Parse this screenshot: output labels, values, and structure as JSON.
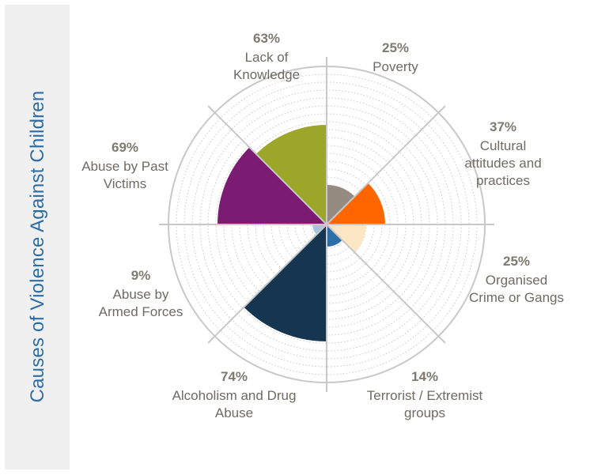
{
  "title": "Causes of Violence Against Children",
  "colors": {
    "title": "#2e6da4",
    "percent_text": "#7f7a71",
    "label_text": "#6f6a63",
    "grid": "#c8c8c8"
  },
  "chart_data": {
    "type": "polar-area",
    "title": "Causes of Violence Against Children",
    "rlim": [
      0,
      100
    ],
    "grid": true,
    "categories": [
      {
        "label": "Poverty",
        "label_lines": [
          "Poverty"
        ],
        "percent_text": "25%",
        "value": 25,
        "color": "#958b80"
      },
      {
        "label": "Cultural attitudes and practices",
        "label_lines": [
          "Cultural",
          "attitudes and",
          "practices"
        ],
        "percent_text": "37%",
        "value": 37,
        "color": "#ff6600"
      },
      {
        "label": "Organised Crime or Gangs",
        "label_lines": [
          "Organised",
          "Crime or Gangs"
        ],
        "percent_text": "25%",
        "value": 25,
        "color": "#fde6c4"
      },
      {
        "label": "Terrorist / Extremist groups",
        "label_lines": [
          "Terrorist / Extremist",
          "groups"
        ],
        "percent_text": "14%",
        "value": 14,
        "color": "#2c6fa8"
      },
      {
        "label": "Alcoholism and Drug Abuse",
        "label_lines": [
          "Alcoholism and Drug",
          "Abuse"
        ],
        "percent_text": "74%",
        "value": 74,
        "color": "#163550"
      },
      {
        "label": "Abuse by Armed Forces",
        "label_lines": [
          "Abuse by",
          "Armed Forces"
        ],
        "percent_text": "9%",
        "value": 9,
        "color": "#a8c4dd"
      },
      {
        "label": "Abuse by Past Victims",
        "label_lines": [
          "Abuse by Past",
          "Victims"
        ],
        "percent_text": "69%",
        "value": 69,
        "color": "#7b1b72"
      },
      {
        "label": "Lack of Knowledge",
        "label_lines": [
          "Lack of",
          "Knowledge"
        ],
        "percent_text": "63%",
        "value": 63,
        "color": "#9ca628"
      }
    ]
  }
}
